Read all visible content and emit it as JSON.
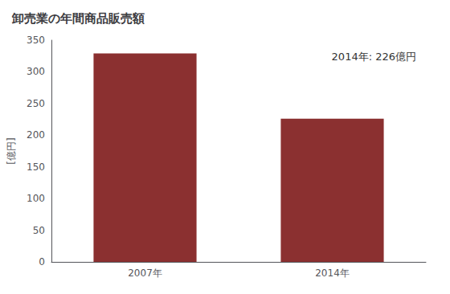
{
  "chart_data": {
    "type": "bar",
    "title": "卸売業の年間商品販売額",
    "ylabel": "[億円]",
    "categories": [
      "2007年",
      "2014年"
    ],
    "values": [
      329,
      226
    ],
    "color": "#8B3030",
    "ylim": [
      0,
      350
    ],
    "yticks": [
      0,
      50,
      100,
      150,
      200,
      250,
      300,
      350
    ],
    "grid": false,
    "annotation": "2014年: 226億円"
  }
}
